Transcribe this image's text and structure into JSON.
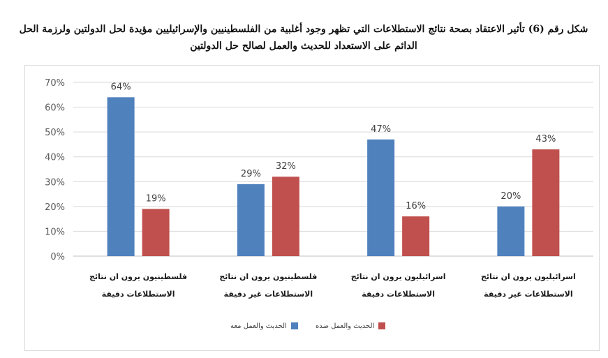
{
  "chart_data": {
    "type": "bar",
    "title": "شكل رقم (6) تأثير الاعتقاد بصحة نتائج الاستطلاعات التي تظهر وجود أغلبية من الفلسطينيين والإسرائيليين مؤيدة لحل الدولتين ولرزمة الحل الدائم على الاستعداد للحديث والعمل لصالح حل الدولتين",
    "categories": [
      [
        "فلسطينيون يرون ان نتائج",
        "الاستطلاعات دقيقة"
      ],
      [
        "فلسطينيون يرون ان نتائج",
        "الاستطلاعات غير دقيقة"
      ],
      [
        "اسرائيليون يرون ان نتائج",
        "الاستطلاعات دقيقة"
      ],
      [
        "اسرائيليون يرون ان نتائج",
        "الاستطلاعات غير دقيقة"
      ]
    ],
    "series": [
      {
        "name": "الحديث والعمل معه",
        "color": "#4f81bd",
        "values": [
          64,
          29,
          47,
          20
        ],
        "labels": [
          "64%",
          "29%",
          "47%",
          "20%"
        ]
      },
      {
        "name": "الحديث والعمل ضده",
        "color": "#c0504d",
        "values": [
          19,
          32,
          16,
          43
        ],
        "labels": [
          "19%",
          "32%",
          "16%",
          "43%"
        ]
      }
    ],
    "ylim": [
      0,
      70
    ],
    "yticks": [
      0,
      10,
      20,
      30,
      40,
      50,
      60,
      70
    ],
    "ytick_labels": [
      "0%",
      "10%",
      "20%",
      "30%",
      "40%",
      "50%",
      "60%",
      "70%"
    ],
    "grid": true,
    "legend_position": "bottom"
  }
}
